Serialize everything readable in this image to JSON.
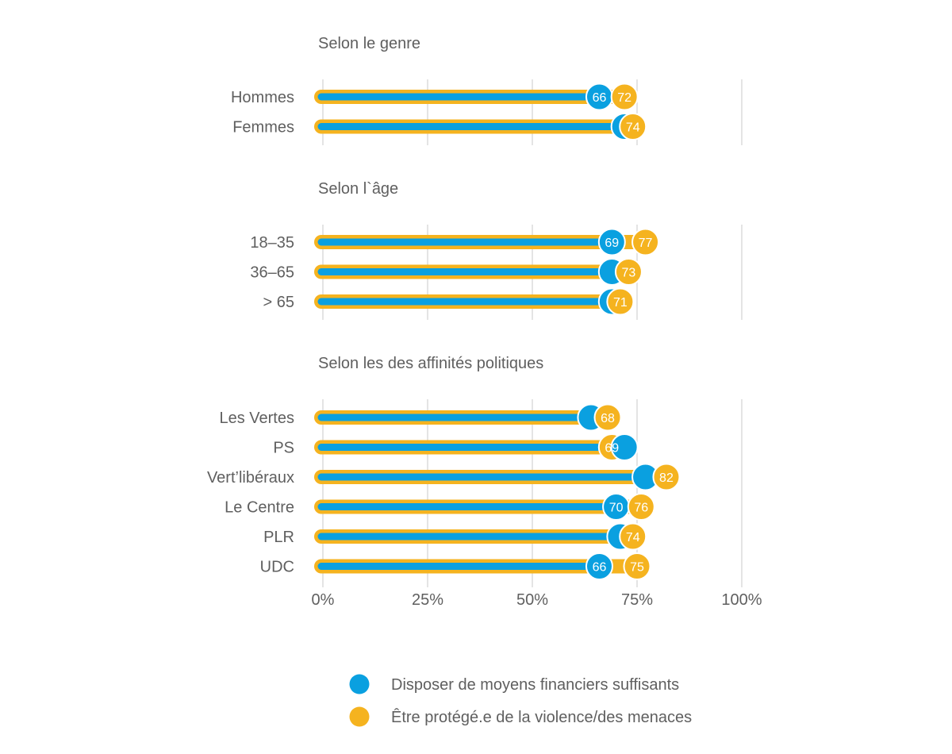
{
  "chart_data": {
    "type": "bar",
    "xlim": [
      0,
      100
    ],
    "x_ticks": [
      0,
      25,
      50,
      75,
      100
    ],
    "x_tick_labels": [
      "0%",
      "25%",
      "50%",
      "75%",
      "100%"
    ],
    "grid": true,
    "legend_position": "bottom",
    "series": [
      {
        "name": "Disposer de moyens financiers suffisants",
        "color": "#0aa0e0"
      },
      {
        "name": "Être protégé.e de la violence/des menaces",
        "color": "#f5b31f"
      }
    ],
    "groups": [
      {
        "title": "Selon le genre",
        "rows": [
          {
            "label": "Hommes",
            "values": [
              66,
              72
            ],
            "labels": [
              "66",
              "72"
            ]
          },
          {
            "label": "Femmes",
            "values": [
              72,
              74
            ],
            "labels": [
              "",
              "74"
            ]
          }
        ]
      },
      {
        "title": "Selon l`âge",
        "rows": [
          {
            "label": "18–35",
            "values": [
              69,
              77
            ],
            "labels": [
              "69",
              "77"
            ]
          },
          {
            "label": "36–65",
            "values": [
              69,
              73
            ],
            "labels": [
              "",
              "73"
            ]
          },
          {
            "label": "> 65",
            "values": [
              69,
              71
            ],
            "labels": [
              "",
              "71"
            ]
          }
        ]
      },
      {
        "title": "Selon les des affinités politiques",
        "rows": [
          {
            "label": "Les Vertes",
            "values": [
              64,
              68
            ],
            "labels": [
              "",
              "68"
            ]
          },
          {
            "label": "PS",
            "values": [
              72,
              69
            ],
            "labels": [
              "",
              "69"
            ]
          },
          {
            "label": "Vert’libéraux",
            "values": [
              77,
              82
            ],
            "labels": [
              "",
              "82"
            ]
          },
          {
            "label": "Le Centre",
            "values": [
              70,
              76
            ],
            "labels": [
              "70",
              "76"
            ]
          },
          {
            "label": "PLR",
            "values": [
              71,
              74
            ],
            "labels": [
              "",
              "74"
            ]
          },
          {
            "label": "UDC",
            "values": [
              66,
              75
            ],
            "labels": [
              "66",
              "75"
            ]
          }
        ]
      }
    ]
  }
}
